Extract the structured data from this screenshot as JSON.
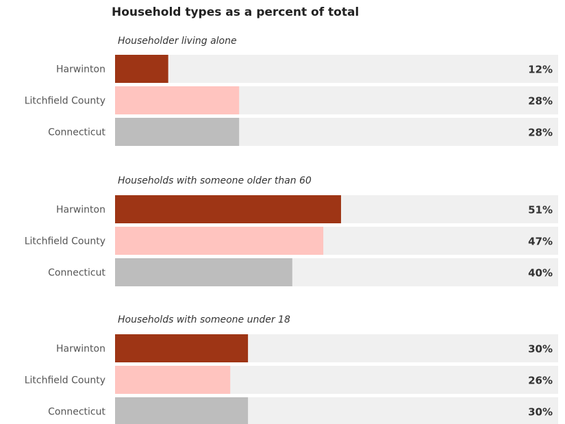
{
  "chart_data": {
    "type": "bar",
    "title": "Household types as a percent of total",
    "xlim": [
      0,
      100
    ],
    "value_suffix": "%",
    "categories": [
      "Harwinton",
      "Litchfield County",
      "Connecticut"
    ],
    "colors": {
      "Harwinton": "#9e3515",
      "Litchfield County": "#ffc4bf",
      "Connecticut": "#bdbdbd",
      "track": "#f0f0f0"
    },
    "groups": [
      {
        "subtitle": "Householder living alone",
        "values": [
          12,
          28,
          28
        ]
      },
      {
        "subtitle": "Households with someone older than 60",
        "values": [
          51,
          47,
          40
        ]
      },
      {
        "subtitle": "Households with someone under 18",
        "values": [
          30,
          26,
          30
        ]
      }
    ]
  }
}
